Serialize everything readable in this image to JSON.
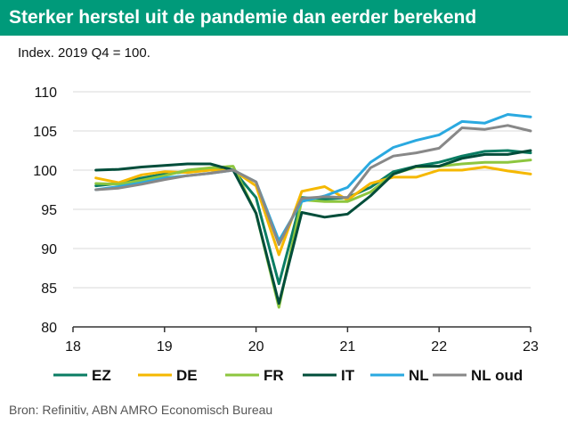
{
  "chart_data": {
    "type": "line",
    "title": "Sterker herstel uit de pandemie dan eerder berekend",
    "subtitle": "Index. 2019 Q4 = 100.",
    "source": "Bron: Refinitiv, ABN AMRO Economisch Bureau",
    "xlim": [
      18,
      23
    ],
    "ylim": [
      80,
      110
    ],
    "x_ticks": [
      "18",
      "19",
      "20",
      "21",
      "22",
      "23"
    ],
    "y_ticks": [
      "80",
      "85",
      "90",
      "95",
      "100",
      "105",
      "110"
    ],
    "x": [
      18.25,
      18.5,
      18.75,
      19.0,
      19.25,
      19.5,
      19.75,
      20.0,
      20.25,
      20.5,
      20.75,
      21.0,
      21.25,
      21.5,
      21.75,
      22.0,
      22.25,
      22.5,
      22.75,
      23.0
    ],
    "series": [
      {
        "name": "EZ",
        "color": "#0a7d63",
        "values": [
          98.0,
          98.3,
          99.0,
          99.5,
          99.8,
          100.2,
          100.0,
          96.5,
          85.5,
          96.5,
          96.3,
          96.5,
          97.8,
          99.8,
          100.5,
          101.0,
          101.8,
          102.4,
          102.5,
          102.2
        ]
      },
      {
        "name": "DE",
        "color": "#f5b800",
        "values": [
          99.0,
          98.4,
          99.4,
          99.8,
          99.7,
          100.0,
          100.0,
          98.0,
          89.2,
          97.3,
          97.9,
          96.2,
          98.3,
          99.1,
          99.1,
          100.0,
          100.0,
          100.4,
          99.9,
          99.5
        ]
      },
      {
        "name": "FR",
        "color": "#8dc63f",
        "values": [
          98.3,
          98.2,
          98.7,
          99.3,
          100.0,
          100.3,
          100.5,
          94.5,
          82.5,
          96.2,
          96.0,
          96.0,
          97.2,
          99.5,
          100.4,
          100.5,
          100.8,
          101.0,
          101.0,
          101.3
        ]
      },
      {
        "name": "IT",
        "color": "#004d3a",
        "values": [
          100.0,
          100.1,
          100.4,
          100.6,
          100.8,
          100.8,
          100.0,
          94.5,
          83.0,
          94.6,
          94.0,
          94.4,
          96.7,
          99.5,
          100.5,
          100.5,
          101.5,
          102.0,
          102.0,
          102.5
        ]
      },
      {
        "name": "NL",
        "color": "#2aa9e0",
        "values": [
          97.5,
          97.9,
          98.4,
          99.0,
          99.3,
          99.6,
          100.0,
          98.5,
          91.0,
          96.0,
          96.7,
          97.8,
          101.0,
          102.9,
          103.8,
          104.5,
          106.2,
          106.0,
          107.1,
          106.8
        ]
      },
      {
        "name": "NL oud",
        "color": "#888888",
        "values": [
          97.5,
          97.7,
          98.2,
          98.8,
          99.3,
          99.6,
          100.0,
          98.5,
          90.5,
          96.4,
          96.6,
          96.5,
          100.3,
          101.8,
          102.2,
          102.8,
          105.4,
          105.2,
          105.7,
          105.0
        ]
      }
    ]
  }
}
